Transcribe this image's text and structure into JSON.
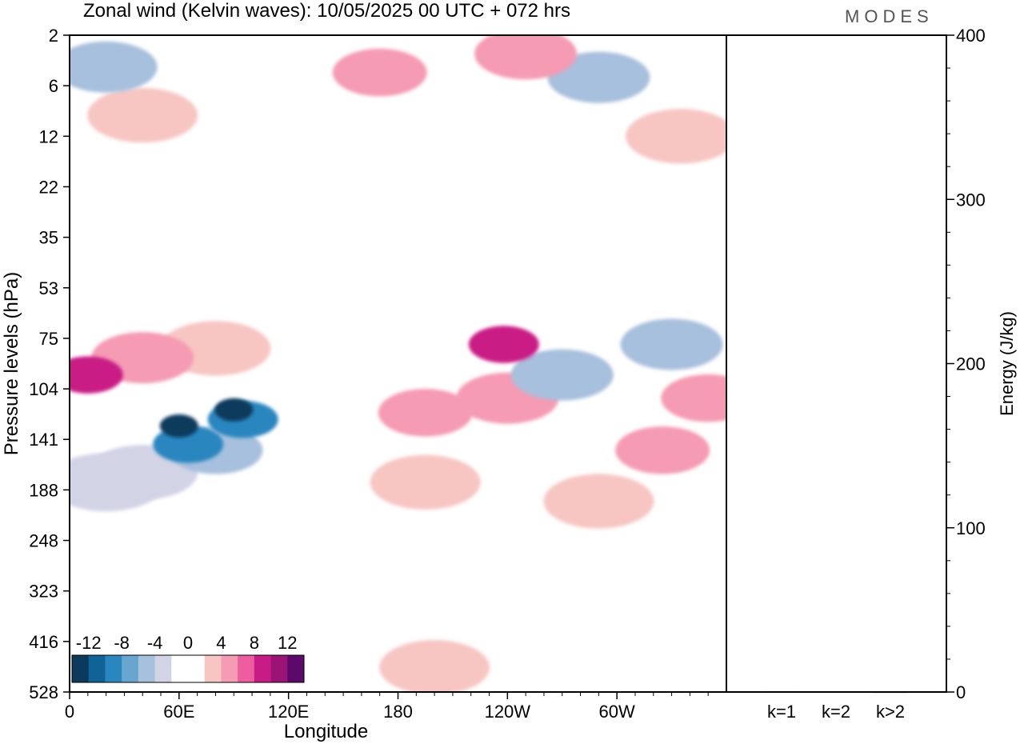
{
  "title": "Zonal wind (Kelvin waves):  10/05/2025  00 UTC  + 072 hrs",
  "brand": "MODES",
  "colors": {
    "neg": [
      "#0b3a5c",
      "#0f6396",
      "#2a86bf",
      "#68a6d0",
      "#a7c0dd",
      "#d2d4e6"
    ],
    "zero": "#ffffff",
    "pos": [
      "#f7c6c3",
      "#f59bb3",
      "#ee5d9e",
      "#c91b85",
      "#991474",
      "#5b0a6b"
    ]
  },
  "chart_data": [
    {
      "type": "heatmap",
      "xlabel": "Longitude",
      "ylabel": "Pressure levels (hPa)",
      "x_ticks": [
        "0",
        "60E",
        "120E",
        "180",
        "120W",
        "60W"
      ],
      "x_tick_values": [
        0,
        60,
        120,
        180,
        240,
        300
      ],
      "xlim": [
        0,
        360
      ],
      "y_ticks": [
        "2",
        "6",
        "12",
        "22",
        "35",
        "53",
        "75",
        "104",
        "141",
        "188",
        "248",
        "323",
        "416",
        "528"
      ],
      "colorbar": {
        "labels": [
          "-12",
          "-8",
          "-4",
          "0",
          "4",
          "8",
          "12"
        ],
        "levels": [
          -14,
          -12,
          -10,
          -8,
          -6,
          -4,
          -2,
          2,
          4,
          6,
          8,
          10,
          12,
          14
        ]
      },
      "features": [
        {
          "lon": 60,
          "level": 130,
          "value": -12
        },
        {
          "lon": 90,
          "level": 118,
          "value": -12
        },
        {
          "lon": 65,
          "level": 145,
          "value": -8
        },
        {
          "lon": 95,
          "level": 125,
          "value": -8
        },
        {
          "lon": 80,
          "level": 150,
          "value": -5
        },
        {
          "lon": 40,
          "level": 170,
          "value": -3
        },
        {
          "lon": 20,
          "level": 180,
          "value": -2
        },
        {
          "lon": 10,
          "level": 95,
          "value": 8
        },
        {
          "lon": 40,
          "level": 85,
          "value": 4
        },
        {
          "lon": 80,
          "level": 80,
          "value": 3
        },
        {
          "lon": 195,
          "level": 120,
          "value": 5
        },
        {
          "lon": 195,
          "level": 180,
          "value": 3
        },
        {
          "lon": 238,
          "level": 78,
          "value": 8
        },
        {
          "lon": 240,
          "level": 110,
          "value": 4
        },
        {
          "lon": 270,
          "level": 95,
          "value": -4
        },
        {
          "lon": 330,
          "level": 78,
          "value": -4
        },
        {
          "lon": 350,
          "level": 110,
          "value": 5
        },
        {
          "lon": 325,
          "level": 150,
          "value": 5
        },
        {
          "lon": 290,
          "level": 200,
          "value": 3
        },
        {
          "lon": 200,
          "level": 470,
          "value": 3
        },
        {
          "lon": 290,
          "level": 5,
          "value": -4
        },
        {
          "lon": 250,
          "level": 3,
          "value": 4
        },
        {
          "lon": 170,
          "level": 4.5,
          "value": 5
        },
        {
          "lon": 20,
          "level": 4,
          "value": -4
        },
        {
          "lon": 40,
          "level": 9,
          "value": 3
        },
        {
          "lon": 335,
          "level": 12,
          "value": 3
        }
      ]
    },
    {
      "type": "bar",
      "categories": [
        "k=1",
        "k=2",
        "k>2"
      ],
      "values": [
        0.5,
        0.3,
        0.2
      ],
      "ylabel": "Energy (J/kg)",
      "ylim": [
        0,
        400
      ],
      "y_ticks": [
        "0",
        "100",
        "200",
        "300",
        "400"
      ]
    }
  ]
}
